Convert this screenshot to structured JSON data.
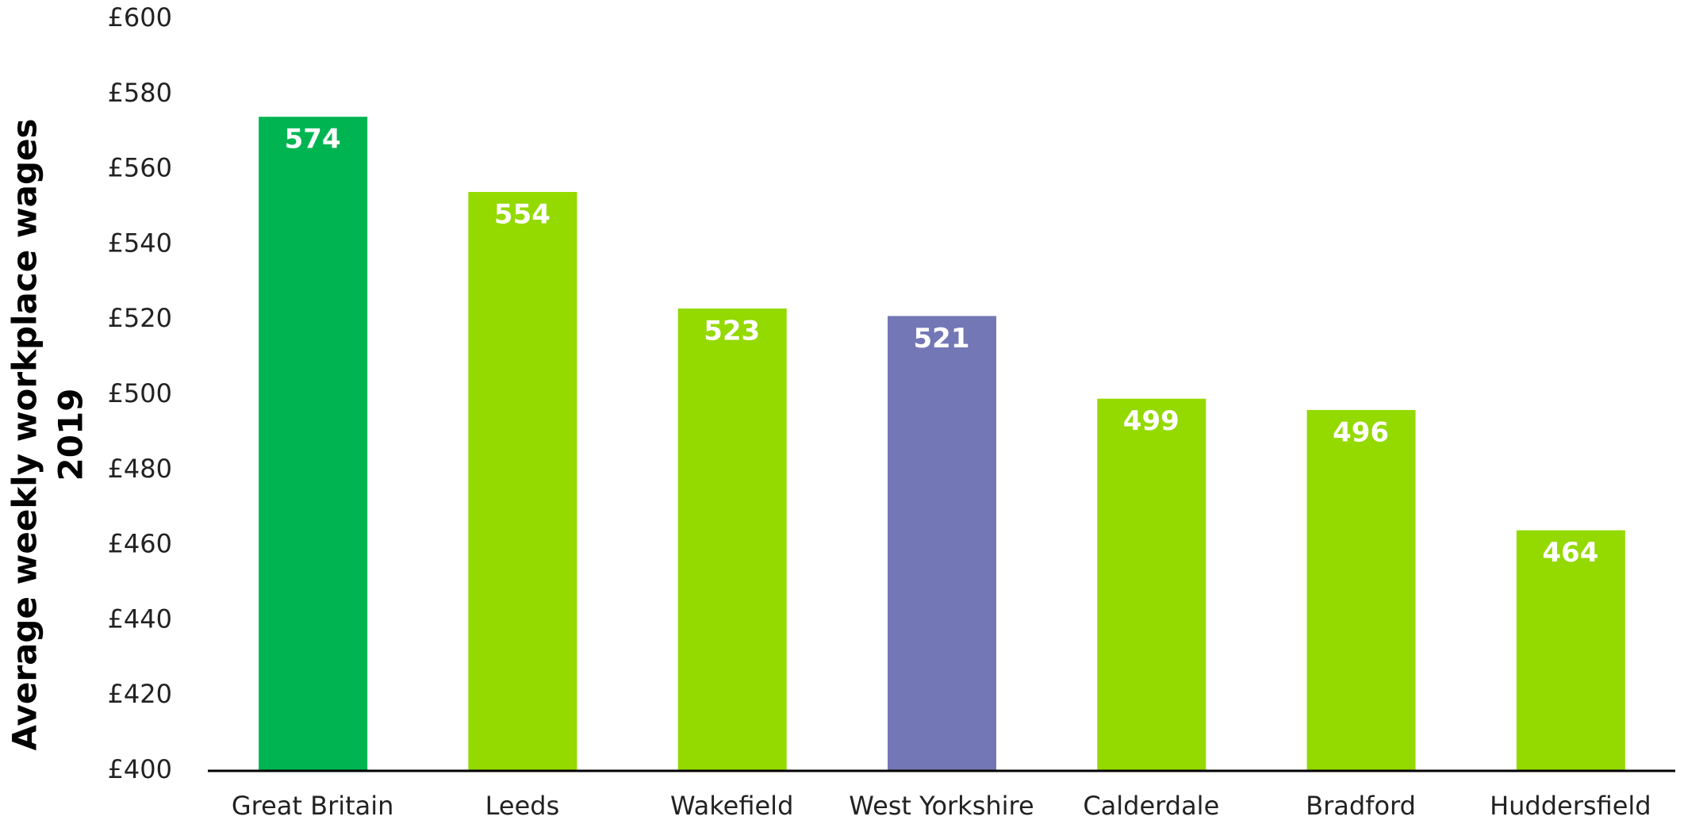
{
  "chart_data": {
    "type": "bar",
    "ylabel": [
      "Average weekly workplace wages",
      "2019"
    ],
    "categories": [
      "Great Britain",
      "Leeds",
      "Wakefield",
      "West Yorkshire",
      "Calderdale",
      "Bradford",
      "Huddersfield"
    ],
    "values": [
      574,
      554,
      523,
      521,
      499,
      496,
      464
    ],
    "colors": [
      "#00b551",
      "#94d900",
      "#94d900",
      "#7477b5",
      "#94d900",
      "#94d900",
      "#94d900"
    ],
    "ylim": [
      400,
      600
    ],
    "yticks": [
      {
        "value": 400,
        "label": "£400"
      },
      {
        "value": 420,
        "label": "£420"
      },
      {
        "value": 440,
        "label": "£440"
      },
      {
        "value": 460,
        "label": "£460"
      },
      {
        "value": 480,
        "label": "£480"
      },
      {
        "value": 500,
        "label": "£500"
      },
      {
        "value": 520,
        "label": "£520"
      },
      {
        "value": 540,
        "label": "£540"
      },
      {
        "value": 560,
        "label": "£560"
      },
      {
        "value": 580,
        "label": "£580"
      },
      {
        "value": 600,
        "label": "£600"
      }
    ],
    "grid": false
  }
}
